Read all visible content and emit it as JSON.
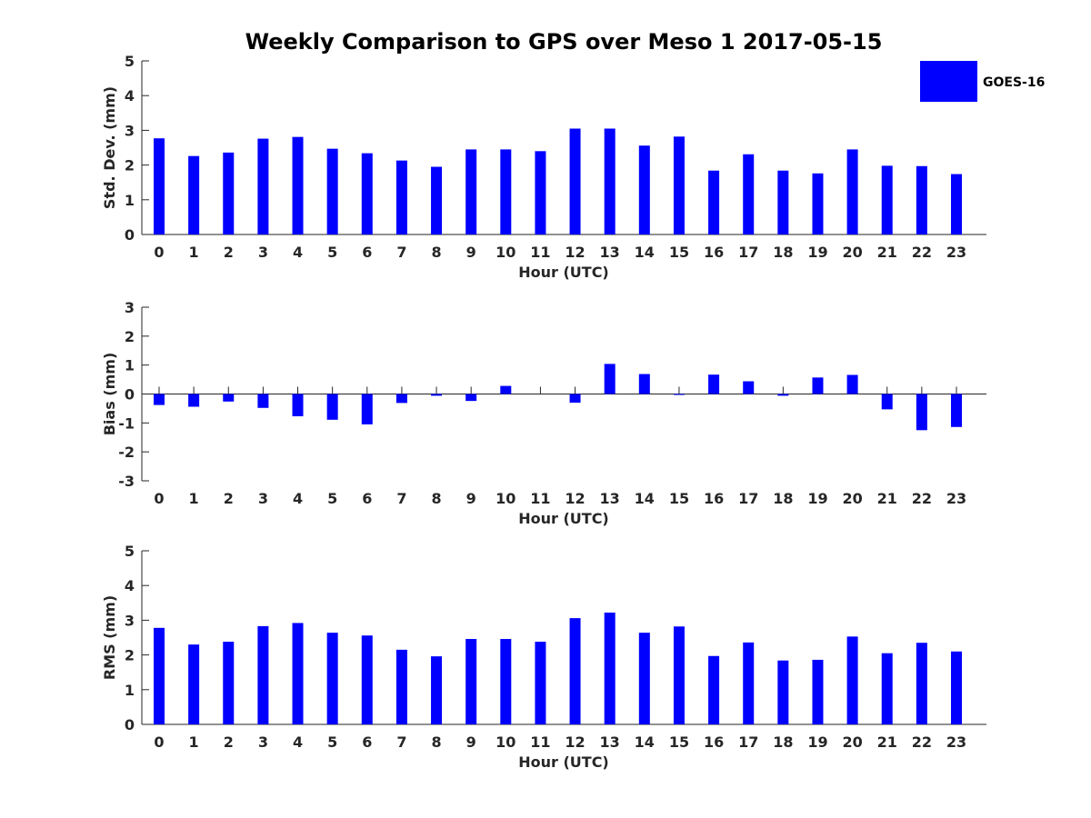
{
  "figure": {
    "title": "Weekly Comparison to GPS over Meso 1 2017-05-15"
  },
  "legend": {
    "label": "GOES-16",
    "color": "#0000ff"
  },
  "chart_data": [
    {
      "type": "bar",
      "id": "stddev",
      "categories": [
        "0",
        "1",
        "2",
        "3",
        "4",
        "5",
        "6",
        "7",
        "8",
        "9",
        "10",
        "11",
        "12",
        "13",
        "14",
        "15",
        "16",
        "17",
        "18",
        "19",
        "20",
        "21",
        "22",
        "23"
      ],
      "series": [
        {
          "name": "GOES-16",
          "color": "#0000ff",
          "values": [
            2.77,
            2.26,
            2.36,
            2.76,
            2.81,
            2.47,
            2.34,
            2.13,
            1.95,
            2.45,
            2.45,
            2.4,
            3.05,
            3.05,
            2.56,
            2.82,
            1.84,
            2.31,
            1.84,
            1.76,
            2.45,
            1.98,
            1.97,
            1.74
          ]
        }
      ],
      "xlabel": "Hour (UTC)",
      "ylabel": "Std. Dev. (mm)",
      "ylim": [
        0,
        5
      ],
      "yticks": [
        "0",
        "1",
        "2",
        "3",
        "4",
        "5"
      ]
    },
    {
      "type": "bar",
      "id": "bias",
      "categories": [
        "0",
        "1",
        "2",
        "3",
        "4",
        "5",
        "6",
        "7",
        "8",
        "9",
        "10",
        "11",
        "12",
        "13",
        "14",
        "15",
        "16",
        "17",
        "18",
        "19",
        "20",
        "21",
        "22",
        "23"
      ],
      "series": [
        {
          "name": "GOES-16",
          "color": "#0000ff",
          "values": [
            -0.38,
            -0.44,
            -0.26,
            -0.48,
            -0.77,
            -0.89,
            -1.05,
            -0.31,
            -0.06,
            -0.24,
            0.28,
            0.0,
            -0.3,
            1.04,
            0.69,
            -0.02,
            0.67,
            0.44,
            -0.06,
            0.57,
            0.66,
            -0.53,
            -1.25,
            -1.14
          ]
        }
      ],
      "xlabel": "Hour (UTC)",
      "ylabel": "Bias (mm)",
      "ylim": [
        -3,
        3
      ],
      "yticks": [
        "-3",
        "-2",
        "-1",
        "0",
        "1",
        "2",
        "3"
      ]
    },
    {
      "type": "bar",
      "id": "rms",
      "categories": [
        "0",
        "1",
        "2",
        "3",
        "4",
        "5",
        "6",
        "7",
        "8",
        "9",
        "10",
        "11",
        "12",
        "13",
        "14",
        "15",
        "16",
        "17",
        "18",
        "19",
        "20",
        "21",
        "22",
        "23"
      ],
      "series": [
        {
          "name": "GOES-16",
          "color": "#0000ff",
          "values": [
            2.78,
            2.3,
            2.38,
            2.83,
            2.92,
            2.64,
            2.56,
            2.15,
            1.96,
            2.46,
            2.46,
            2.38,
            3.06,
            3.22,
            2.64,
            2.82,
            1.97,
            2.36,
            1.84,
            1.86,
            2.53,
            2.05,
            2.35,
            2.1
          ]
        }
      ],
      "xlabel": "Hour (UTC)",
      "ylabel": "RMS (mm)",
      "ylim": [
        0,
        5
      ],
      "yticks": [
        "0",
        "1",
        "2",
        "3",
        "4",
        "5"
      ]
    }
  ]
}
